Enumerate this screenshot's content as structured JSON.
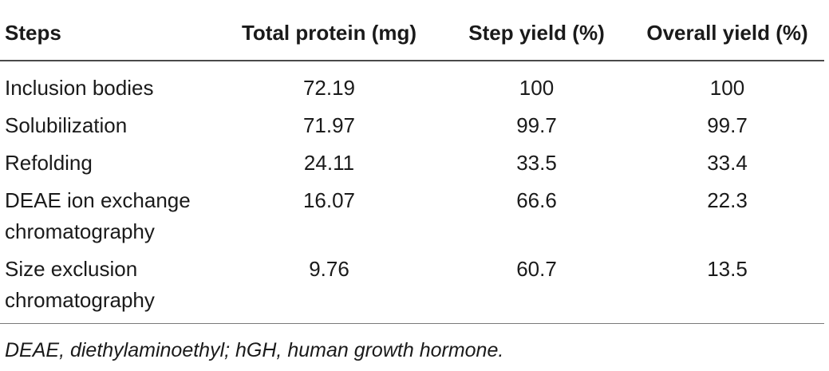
{
  "table": {
    "headers": [
      "Steps",
      "Total protein (mg)",
      "Step yield (%)",
      "Overall yield (%)"
    ],
    "rows": [
      {
        "step_line1": "Inclusion bodies",
        "step_line2": "",
        "total_protein": "72.19",
        "step_yield": "100",
        "overall_yield": "100"
      },
      {
        "step_line1": "Solubilization",
        "step_line2": "",
        "total_protein": "71.97",
        "step_yield": "99.7",
        "overall_yield": "99.7"
      },
      {
        "step_line1": "Refolding",
        "step_line2": "",
        "total_protein": "24.11",
        "step_yield": "33.5",
        "overall_yield": "33.4"
      },
      {
        "step_line1": "DEAE ion exchange",
        "step_line2": "chromatography",
        "total_protein": "16.07",
        "step_yield": "66.6",
        "overall_yield": "22.3"
      },
      {
        "step_line1": "Size exclusion",
        "step_line2": "chromatography",
        "total_protein": "9.76",
        "step_yield": "60.7",
        "overall_yield": "13.5"
      }
    ]
  },
  "footnote": "DEAE, diethylaminoethyl; hGH, human growth hormone."
}
